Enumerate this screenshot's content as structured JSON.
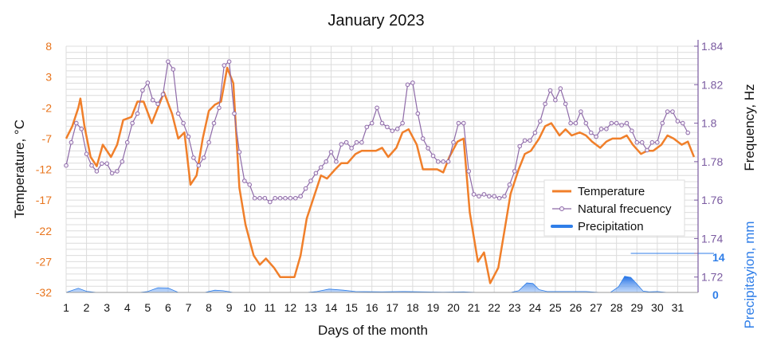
{
  "chart_data": {
    "type": "line",
    "title": "January 2023",
    "xlabel": "Days of the month",
    "ylabel_left": "Temperature, °C",
    "ylabel_right_freq": "Frequency, Hz",
    "ylabel_right_precip": "Precipitayion, mm",
    "x_ticks": [
      "1",
      "2",
      "3",
      "4",
      "5",
      "6",
      "7",
      "8",
      "9",
      "10",
      "11",
      "12",
      "13",
      "14",
      "15",
      "16",
      "17",
      "18",
      "19",
      "20",
      "21",
      "22",
      "23",
      "24",
      "25",
      "26",
      "27",
      "28",
      "29",
      "30",
      "31"
    ],
    "xlim": [
      1,
      32
    ],
    "temp_ticks": [
      "8",
      "3",
      "-2",
      "-7",
      "-12",
      "-17",
      "-22",
      "-27",
      "-32"
    ],
    "temp_ylim": [
      -32,
      8
    ],
    "freq_ticks": [
      "1.84",
      "1.82",
      "1.8",
      "1.78",
      "1.76",
      "1.74",
      "1.72"
    ],
    "freq_ylim": [
      1.712,
      1.84
    ],
    "precip_ticks": [
      "14",
      "0"
    ],
    "precip_ylim": [
      0,
      14
    ],
    "grid": true,
    "legend_position": "right",
    "series": [
      {
        "name": "Temperature",
        "axis": "temperature",
        "color": "#f07f2a",
        "style": "line",
        "points": [
          [
            1,
            -7
          ],
          [
            1.3,
            -5
          ],
          [
            1.6,
            -2
          ],
          [
            1.7,
            -0.5
          ],
          [
            1.9,
            -5
          ],
          [
            2.2,
            -10
          ],
          [
            2.5,
            -11.5
          ],
          [
            2.8,
            -8
          ],
          [
            3.2,
            -10
          ],
          [
            3.5,
            -8
          ],
          [
            3.8,
            -4
          ],
          [
            4.2,
            -3.5
          ],
          [
            4.5,
            -1
          ],
          [
            4.8,
            -1
          ],
          [
            5.2,
            -4.5
          ],
          [
            5.5,
            -2
          ],
          [
            5.8,
            0.5
          ],
          [
            6.2,
            -3
          ],
          [
            6.5,
            -7
          ],
          [
            6.8,
            -6
          ],
          [
            7.1,
            -14.5
          ],
          [
            7.4,
            -13
          ],
          [
            7.7,
            -7
          ],
          [
            8.0,
            -2.5
          ],
          [
            8.3,
            -1.5
          ],
          [
            8.6,
            -1
          ],
          [
            8.9,
            4.5
          ],
          [
            9.2,
            2
          ],
          [
            9.5,
            -15
          ],
          [
            9.8,
            -21
          ],
          [
            10.2,
            -26
          ],
          [
            10.5,
            -27.5
          ],
          [
            10.8,
            -26.5
          ],
          [
            11.2,
            -28
          ],
          [
            11.5,
            -29.5
          ],
          [
            11.8,
            -29.5
          ],
          [
            12.2,
            -29.5
          ],
          [
            12.5,
            -26
          ],
          [
            12.8,
            -20
          ],
          [
            13.2,
            -16
          ],
          [
            13.5,
            -13
          ],
          [
            13.8,
            -13.5
          ],
          [
            14.2,
            -12
          ],
          [
            14.5,
            -11
          ],
          [
            14.8,
            -11
          ],
          [
            15.2,
            -9.5
          ],
          [
            15.5,
            -9
          ],
          [
            15.8,
            -9
          ],
          [
            16.2,
            -9
          ],
          [
            16.5,
            -8.5
          ],
          [
            16.8,
            -10
          ],
          [
            17.2,
            -8.5
          ],
          [
            17.5,
            -6
          ],
          [
            17.8,
            -5.5
          ],
          [
            18.2,
            -8
          ],
          [
            18.5,
            -12
          ],
          [
            18.8,
            -12
          ],
          [
            19.2,
            -12
          ],
          [
            19.5,
            -12.5
          ],
          [
            19.8,
            -10
          ],
          [
            20.2,
            -7.5
          ],
          [
            20.5,
            -7
          ],
          [
            20.8,
            -19
          ],
          [
            21.2,
            -27
          ],
          [
            21.5,
            -25.5
          ],
          [
            21.8,
            -30.5
          ],
          [
            22.2,
            -28
          ],
          [
            22.5,
            -22
          ],
          [
            22.8,
            -16
          ],
          [
            23.2,
            -12
          ],
          [
            23.5,
            -9.5
          ],
          [
            23.8,
            -9
          ],
          [
            24.2,
            -7
          ],
          [
            24.5,
            -5
          ],
          [
            24.8,
            -4.5
          ],
          [
            25.2,
            -6.5
          ],
          [
            25.5,
            -5.5
          ],
          [
            25.8,
            -6.5
          ],
          [
            26.2,
            -6
          ],
          [
            26.5,
            -6.5
          ],
          [
            26.8,
            -7.5
          ],
          [
            27.2,
            -8.5
          ],
          [
            27.5,
            -7.5
          ],
          [
            27.8,
            -7
          ],
          [
            28.2,
            -7
          ],
          [
            28.5,
            -6.5
          ],
          [
            28.8,
            -8
          ],
          [
            29.2,
            -9.5
          ],
          [
            29.5,
            -9
          ],
          [
            29.8,
            -9
          ],
          [
            30.2,
            -8
          ],
          [
            30.5,
            -6.5
          ],
          [
            30.8,
            -7
          ],
          [
            31.2,
            -8
          ],
          [
            31.5,
            -7.5
          ],
          [
            31.8,
            -10
          ]
        ]
      },
      {
        "name": "Natural frecuency",
        "axis": "frequency",
        "color": "#8e6aa8",
        "style": "line-markers",
        "points": [
          [
            1,
            1.778
          ],
          [
            1.25,
            1.79
          ],
          [
            1.5,
            1.8
          ],
          [
            1.75,
            1.797
          ],
          [
            2,
            1.784
          ],
          [
            2.25,
            1.778
          ],
          [
            2.5,
            1.775
          ],
          [
            2.75,
            1.779
          ],
          [
            3,
            1.779
          ],
          [
            3.25,
            1.774
          ],
          [
            3.5,
            1.775
          ],
          [
            3.75,
            1.78
          ],
          [
            4,
            1.79
          ],
          [
            4.25,
            1.8
          ],
          [
            4.5,
            1.805
          ],
          [
            4.75,
            1.817
          ],
          [
            5,
            1.821
          ],
          [
            5.25,
            1.812
          ],
          [
            5.5,
            1.81
          ],
          [
            5.75,
            1.815
          ],
          [
            6,
            1.832
          ],
          [
            6.25,
            1.828
          ],
          [
            6.5,
            1.805
          ],
          [
            6.75,
            1.8
          ],
          [
            7,
            1.793
          ],
          [
            7.25,
            1.782
          ],
          [
            7.5,
            1.778
          ],
          [
            7.75,
            1.782
          ],
          [
            8,
            1.79
          ],
          [
            8.25,
            1.8
          ],
          [
            8.5,
            1.808
          ],
          [
            8.75,
            1.83
          ],
          [
            9,
            1.832
          ],
          [
            9.25,
            1.805
          ],
          [
            9.5,
            1.785
          ],
          [
            9.75,
            1.77
          ],
          [
            10,
            1.768
          ],
          [
            10.25,
            1.761
          ],
          [
            10.5,
            1.761
          ],
          [
            10.75,
            1.761
          ],
          [
            11,
            1.759
          ],
          [
            11.25,
            1.761
          ],
          [
            11.5,
            1.761
          ],
          [
            11.75,
            1.761
          ],
          [
            12,
            1.761
          ],
          [
            12.25,
            1.761
          ],
          [
            12.5,
            1.762
          ],
          [
            12.75,
            1.766
          ],
          [
            13,
            1.77
          ],
          [
            13.25,
            1.774
          ],
          [
            13.5,
            1.777
          ],
          [
            13.75,
            1.78
          ],
          [
            14,
            1.785
          ],
          [
            14.25,
            1.78
          ],
          [
            14.5,
            1.789
          ],
          [
            14.75,
            1.79
          ],
          [
            15,
            1.787
          ],
          [
            15.25,
            1.79
          ],
          [
            15.5,
            1.79
          ],
          [
            15.75,
            1.798
          ],
          [
            16,
            1.8
          ],
          [
            16.25,
            1.808
          ],
          [
            16.5,
            1.8
          ],
          [
            16.75,
            1.798
          ],
          [
            17,
            1.796
          ],
          [
            17.25,
            1.797
          ],
          [
            17.5,
            1.8
          ],
          [
            17.75,
            1.82
          ],
          [
            18,
            1.821
          ],
          [
            18.25,
            1.805
          ],
          [
            18.5,
            1.792
          ],
          [
            18.75,
            1.787
          ],
          [
            19,
            1.783
          ],
          [
            19.25,
            1.78
          ],
          [
            19.5,
            1.78
          ],
          [
            19.75,
            1.78
          ],
          [
            20,
            1.79
          ],
          [
            20.25,
            1.8
          ],
          [
            20.5,
            1.8
          ],
          [
            20.75,
            1.775
          ],
          [
            21,
            1.763
          ],
          [
            21.25,
            1.762
          ],
          [
            21.5,
            1.763
          ],
          [
            21.75,
            1.762
          ],
          [
            22,
            1.762
          ],
          [
            22.25,
            1.761
          ],
          [
            22.5,
            1.762
          ],
          [
            22.75,
            1.768
          ],
          [
            23,
            1.775
          ],
          [
            23.25,
            1.788
          ],
          [
            23.5,
            1.791
          ],
          [
            23.75,
            1.791
          ],
          [
            24,
            1.795
          ],
          [
            24.25,
            1.801
          ],
          [
            24.5,
            1.81
          ],
          [
            24.75,
            1.817
          ],
          [
            25,
            1.812
          ],
          [
            25.25,
            1.818
          ],
          [
            25.5,
            1.81
          ],
          [
            25.75,
            1.8
          ],
          [
            26,
            1.8
          ],
          [
            26.25,
            1.806
          ],
          [
            26.5,
            1.8
          ],
          [
            26.75,
            1.795
          ],
          [
            27,
            1.793
          ],
          [
            27.25,
            1.797
          ],
          [
            27.5,
            1.797
          ],
          [
            27.75,
            1.8
          ],
          [
            28,
            1.8
          ],
          [
            28.25,
            1.799
          ],
          [
            28.5,
            1.8
          ],
          [
            28.75,
            1.796
          ],
          [
            29,
            1.79
          ],
          [
            29.25,
            1.79
          ],
          [
            29.5,
            1.786
          ],
          [
            29.75,
            1.79
          ],
          [
            30,
            1.79
          ],
          [
            30.25,
            1.8
          ],
          [
            30.5,
            1.806
          ],
          [
            30.75,
            1.806
          ],
          [
            31,
            1.801
          ],
          [
            31.25,
            1.8
          ],
          [
            31.5,
            1.795
          ]
        ]
      },
      {
        "name": "Precipitation",
        "axis": "precipitation",
        "color": "#2f7ee8",
        "style": "area",
        "points": [
          [
            1,
            0
          ],
          [
            1.2,
            0.5
          ],
          [
            1.6,
            1.5
          ],
          [
            2,
            0.4
          ],
          [
            2.5,
            0
          ],
          [
            4.6,
            0
          ],
          [
            5.0,
            0.3
          ],
          [
            5.5,
            1.7
          ],
          [
            6.0,
            1.6
          ],
          [
            6.5,
            0
          ],
          [
            7.8,
            0
          ],
          [
            8.3,
            0.8
          ],
          [
            8.7,
            0.6
          ],
          [
            9.2,
            0
          ],
          [
            12.8,
            0
          ],
          [
            13.3,
            0.3
          ],
          [
            13.9,
            1.2
          ],
          [
            14.6,
            0.8
          ],
          [
            15.2,
            0.3
          ],
          [
            16.5,
            0.2
          ],
          [
            17.5,
            0.3
          ],
          [
            18.5,
            0.2
          ],
          [
            19.5,
            0.1
          ],
          [
            20.5,
            0.2
          ],
          [
            21.2,
            0
          ],
          [
            22.8,
            0
          ],
          [
            23.2,
            0.6
          ],
          [
            23.6,
            3.4
          ],
          [
            23.9,
            3.2
          ],
          [
            24.2,
            1
          ],
          [
            24.6,
            0.3
          ],
          [
            25.5,
            0.3
          ],
          [
            26.5,
            0.3
          ],
          [
            27.2,
            0
          ],
          [
            27.7,
            0
          ],
          [
            28.1,
            2
          ],
          [
            28.4,
            5.8
          ],
          [
            28.7,
            5.4
          ],
          [
            29.0,
            3
          ],
          [
            29.3,
            0.5
          ],
          [
            29.6,
            0.2
          ],
          [
            30.0,
            0.3
          ],
          [
            30.5,
            0
          ],
          [
            31.8,
            0
          ]
        ]
      }
    ],
    "annotations": [
      {
        "label": "14",
        "axis": "precipitation",
        "value": 14
      }
    ]
  }
}
